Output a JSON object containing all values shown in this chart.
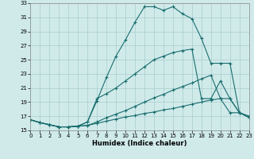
{
  "xlabel": "Humidex (Indice chaleur)",
  "xlim": [
    0,
    23
  ],
  "ylim": [
    15,
    33
  ],
  "xticks": [
    0,
    1,
    2,
    3,
    4,
    5,
    6,
    7,
    8,
    9,
    10,
    11,
    12,
    13,
    14,
    15,
    16,
    17,
    18,
    19,
    20,
    21,
    22,
    23
  ],
  "yticks": [
    15,
    17,
    19,
    21,
    23,
    25,
    27,
    29,
    31,
    33
  ],
  "bg_color": "#d0eaea",
  "line_color": "#1a6e6e",
  "grid_color": "#a8cccc",
  "line1_x": [
    0,
    1,
    2,
    3,
    4,
    5,
    6,
    7,
    8,
    9,
    10,
    11,
    12,
    13,
    14,
    15,
    16,
    17,
    18,
    19,
    20,
    21,
    22,
    23
  ],
  "line1_y": [
    16.5,
    16.1,
    15.8,
    15.5,
    15.5,
    15.6,
    16.2,
    19.2,
    22.5,
    25.5,
    27.8,
    30.3,
    32.5,
    32.5,
    32.0,
    32.5,
    31.5,
    30.8,
    28.0,
    24.5,
    24.5,
    24.5,
    17.5,
    16.8
  ],
  "line2_x": [
    0,
    1,
    2,
    3,
    4,
    5,
    6,
    7,
    8,
    9,
    10,
    11,
    12,
    13,
    14,
    15,
    16,
    17,
    18,
    19,
    20,
    21,
    22,
    23
  ],
  "line2_y": [
    16.5,
    16.1,
    15.8,
    15.5,
    15.5,
    15.6,
    16.2,
    19.5,
    20.2,
    21.0,
    22.0,
    23.0,
    24.0,
    25.0,
    25.5,
    26.0,
    26.3,
    26.5,
    19.5,
    19.5,
    22.0,
    19.5,
    17.5,
    17.0
  ],
  "line3_x": [
    0,
    1,
    2,
    3,
    4,
    5,
    6,
    7,
    8,
    9,
    10,
    11,
    12,
    13,
    14,
    15,
    16,
    17,
    18,
    19,
    20,
    21,
    22,
    23
  ],
  "line3_y": [
    16.5,
    16.1,
    15.8,
    15.5,
    15.5,
    15.6,
    15.7,
    16.2,
    16.8,
    17.3,
    17.8,
    18.4,
    19.0,
    19.6,
    20.1,
    20.7,
    21.2,
    21.7,
    22.3,
    22.8,
    19.5,
    19.5,
    17.5,
    17.0
  ],
  "line4_x": [
    0,
    1,
    2,
    3,
    4,
    5,
    6,
    7,
    8,
    9,
    10,
    11,
    12,
    13,
    14,
    15,
    16,
    17,
    18,
    19,
    20,
    21,
    22,
    23
  ],
  "line4_y": [
    16.5,
    16.1,
    15.8,
    15.5,
    15.5,
    15.6,
    15.7,
    16.0,
    16.3,
    16.6,
    16.9,
    17.1,
    17.4,
    17.6,
    17.9,
    18.1,
    18.4,
    18.7,
    19.0,
    19.3,
    19.5,
    17.5,
    17.5,
    17.0
  ]
}
